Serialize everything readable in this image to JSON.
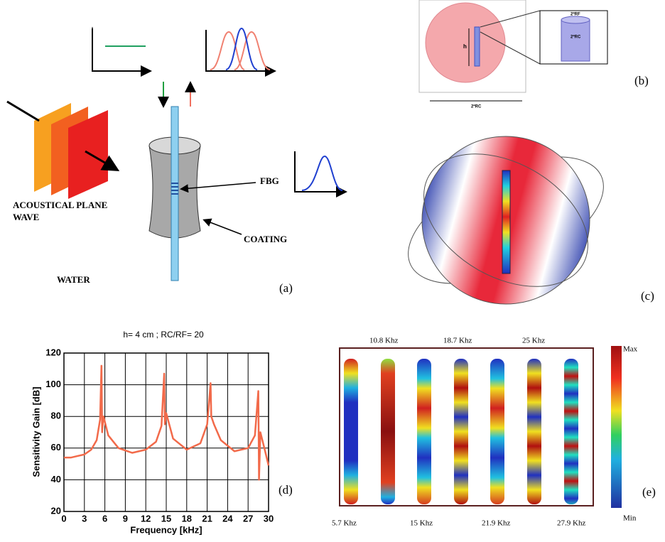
{
  "panel_a": {
    "wave_label": [
      "ACOUSTICAL PLANE",
      "WAVE"
    ],
    "medium": "WATER",
    "fbg": "FBG",
    "coating": "COATING",
    "label": "(a)"
  },
  "panel_b": {
    "h": "h",
    "inset_top": "2*RF",
    "inset_mid": "2*RC",
    "base": "2*RC",
    "label": "(b)"
  },
  "panel_c": {
    "label": "(c)"
  },
  "panel_e": {
    "top_labels": [
      "10.8 Khz",
      "18.7 Khz",
      "25 Khz"
    ],
    "bottom_labels": [
      "5.7 Khz",
      "15 Khz",
      "21.9 Khz",
      "27.9 Khz"
    ],
    "max": "Max",
    "min": "Min",
    "label": "(e)"
  },
  "chart_data": {
    "type": "line",
    "title": "h= 4 cm ; RC/RF= 20",
    "x_label": "Frequency [kHz]",
    "y_label": "Sensitivity Gain [dB]",
    "panel_label": "(d)",
    "x": [
      0,
      1,
      2,
      3,
      4,
      4.8,
      5.3,
      5.5,
      5.6,
      5.8,
      6.5,
      8,
      10,
      12,
      13.5,
      14.3,
      14.7,
      14.8,
      15,
      16,
      18,
      20,
      21,
      21.5,
      21.6,
      22,
      23,
      25,
      27,
      28,
      28.5,
      28.6,
      28.8,
      29.5,
      30
    ],
    "series": [
      {
        "color": "#f26a4a",
        "values": [
          54,
          54,
          55,
          56,
          59,
          65,
          78,
          112,
          70,
          80,
          68,
          60,
          57,
          59,
          64,
          74,
          107,
          75,
          82,
          66,
          59,
          63,
          75,
          101,
          80,
          75,
          65,
          58,
          60,
          68,
          96,
          40,
          70,
          58,
          49
        ]
      }
    ],
    "xlim": [
      0,
      30
    ],
    "xticks": [
      0,
      3,
      6,
      9,
      12,
      15,
      18,
      21,
      24,
      27,
      30
    ],
    "ylim": [
      20,
      120
    ],
    "yticks": [
      20,
      40,
      60,
      80,
      100,
      120
    ],
    "grid": true
  }
}
